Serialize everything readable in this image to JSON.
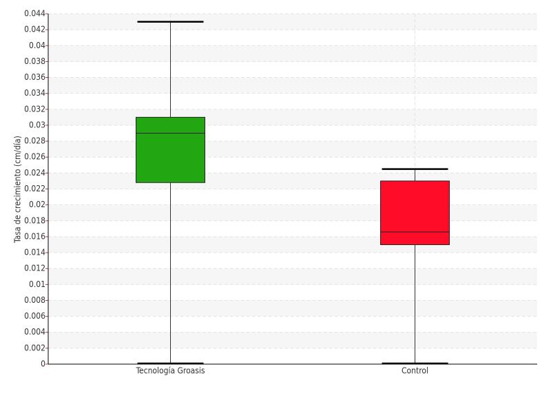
{
  "chart_data": {
    "type": "box",
    "y_label": "Tasa de crecimiento (cm/día)",
    "categories": [
      "Tecnología Groasis",
      "Control"
    ],
    "min": [
      0,
      0
    ],
    "q1": [
      0.0228,
      0.015
    ],
    "median": [
      0.029,
      0.0166
    ],
    "q3": [
      0.031,
      0.023
    ],
    "max": [
      0.043,
      0.0245
    ],
    "colors": [
      "#22a712",
      "#ff0c28"
    ],
    "ylim": [
      0,
      0.044
    ],
    "yticks": [
      0,
      0.002,
      0.004,
      0.006,
      0.008,
      0.01,
      0.012,
      0.014,
      0.016,
      0.018,
      0.02,
      0.022,
      0.024,
      0.026,
      0.028,
      0.03,
      0.032,
      0.034,
      0.036,
      0.038,
      0.04,
      0.042,
      0.044
    ],
    "grid": true
  }
}
